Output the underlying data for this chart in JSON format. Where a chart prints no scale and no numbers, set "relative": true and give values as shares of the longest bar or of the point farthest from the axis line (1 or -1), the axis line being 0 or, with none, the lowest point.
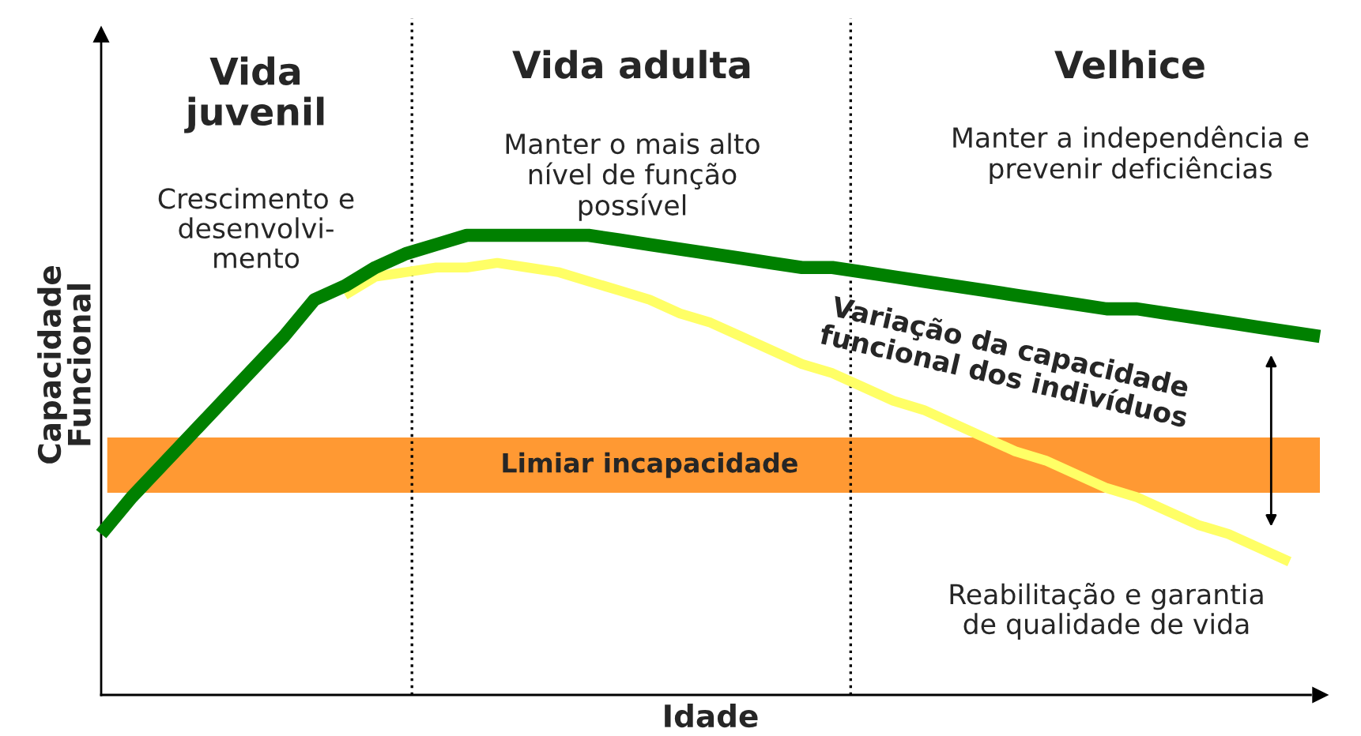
{
  "chart_data": {
    "type": "line",
    "relative": true,
    "xlabel": "Idade",
    "ylabel": "Capacidade\nFuncional",
    "categories": [
      null,
      null,
      null,
      null,
      null,
      null,
      null,
      null,
      null,
      null,
      null,
      null,
      null,
      null,
      null,
      null,
      null,
      null,
      null,
      null,
      null,
      null,
      null,
      null,
      null,
      null,
      null,
      null,
      null,
      null,
      null,
      null,
      null,
      null,
      null,
      null,
      null,
      null,
      null,
      null,
      null
    ],
    "series": [
      {
        "color": "#008000",
        "values": [
          0.35,
          0.43,
          0.5,
          0.57,
          0.64,
          0.71,
          0.78,
          0.86,
          0.89,
          0.93,
          0.96,
          0.98,
          1.0,
          1.0,
          1.0,
          1.0,
          1.0,
          0.99,
          0.98,
          0.97,
          0.96,
          0.95,
          0.94,
          0.93,
          0.93,
          0.92,
          0.91,
          0.9,
          0.89,
          0.88,
          0.87,
          0.86,
          0.85,
          0.84,
          0.84,
          0.83,
          0.82,
          0.81,
          0.8,
          0.79,
          0.78
        ]
      },
      {
        "color": "#ffff66",
        "values": [
          null,
          null,
          null,
          null,
          null,
          null,
          null,
          null,
          0.87,
          0.91,
          0.92,
          0.93,
          0.93,
          0.94,
          0.93,
          0.92,
          0.9,
          0.88,
          0.86,
          0.83,
          0.81,
          0.78,
          0.75,
          0.72,
          0.7,
          0.67,
          0.64,
          0.62,
          0.59,
          0.56,
          0.53,
          0.51,
          0.48,
          0.45,
          0.43,
          0.4,
          0.37,
          0.35,
          0.32,
          0.29,
          null
        ]
      }
    ],
    "bands": [
      {
        "axis": "y",
        "from": 0.44,
        "to": 0.56,
        "label": "Limiar incapacidade",
        "color": "#ff9933"
      }
    ],
    "annotations": [
      "Vida\njuvenil",
      "Vida adulta",
      "Velhice",
      "Crescimento e\ndesenvolvi-\nmento",
      "Manter o mais alto\nnível de função\npossível",
      "Manter a independência e\nprevenir deficiências",
      "Variação da capacidade\nfuncional dos indivíduos",
      "Reabilitação e garantia\nde qualidade de vida"
    ]
  }
}
